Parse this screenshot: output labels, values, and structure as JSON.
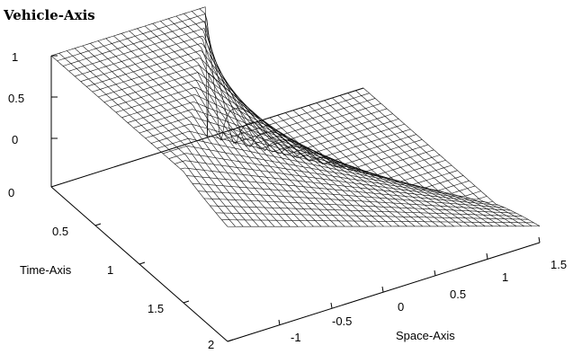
{
  "chart_data": {
    "type": "surface",
    "title": "Vehicle-Axis",
    "xlabel": "Space-Axis",
    "ylabel": "Time-Axis",
    "zlabel": "Vehicle-Axis",
    "xlim": [
      -1.5,
      1.5
    ],
    "ylim": [
      0,
      2
    ],
    "zlim": [
      0,
      1
    ],
    "x_ticks": [
      "-1",
      "-0.5",
      "0",
      "0.5",
      "1",
      "1.5"
    ],
    "y_ticks": [
      "0.5",
      "1",
      "1.5",
      "2"
    ],
    "z_ticks": [
      "0",
      "0",
      "0.5",
      "1"
    ],
    "surface": {
      "description": "Riemann-type solution: vehicle density equals 1 for x < 0 and 0 for x > 0 at time 0, then spreads into a rarefaction fan linearly in x between -t and t.",
      "values_at_t0": {
        "left": 1,
        "right": 0
      },
      "mesh_color": "#111111",
      "x_samples": 41,
      "y_samples": 31
    },
    "grid": false
  }
}
